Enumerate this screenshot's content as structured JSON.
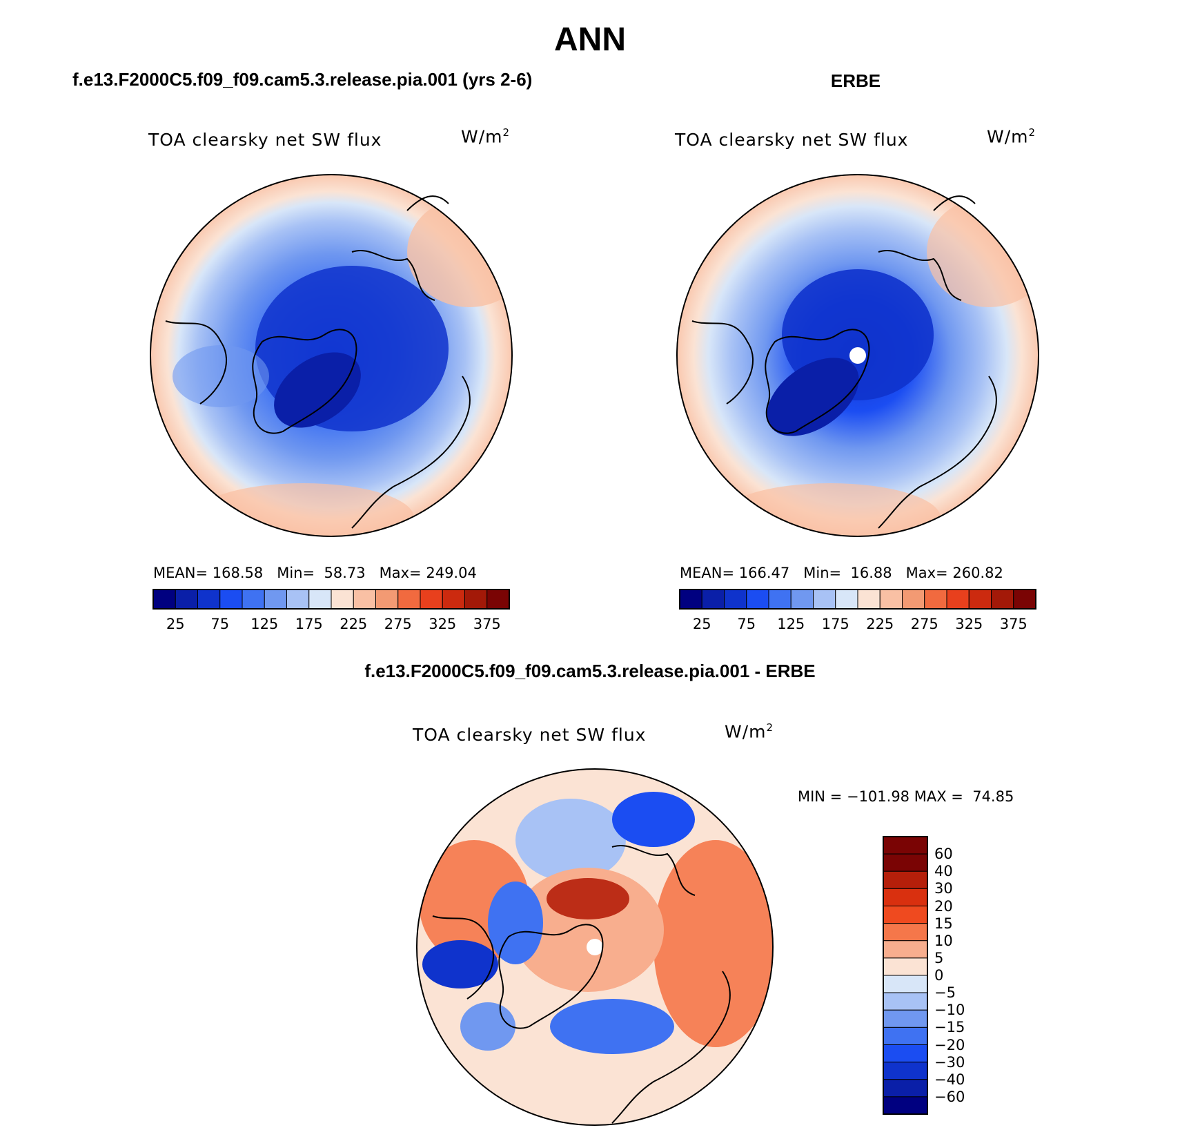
{
  "main_title": "ANN",
  "panels": [
    {
      "title": "f.e13.F2000C5.f09_f09.cam5.3.release.pia.001 (yrs 2-6)",
      "variable": "TOA clearsky net SW flux",
      "units": "W/m",
      "units_sup": "2",
      "mean_label": "MEAN=",
      "mean": "168.58",
      "min_label": "Min=",
      "min": "58.73",
      "max_label": "Max=",
      "max": "249.04",
      "colorbar_labels": [
        "25",
        "75",
        "125",
        "175",
        "225",
        "275",
        "325",
        "375"
      ]
    },
    {
      "title": "ERBE",
      "variable": "TOA clearsky net SW flux",
      "units": "W/m",
      "units_sup": "2",
      "mean_label": "MEAN=",
      "mean": "166.47",
      "min_label": "Min=",
      "min": "16.88",
      "max_label": "Max=",
      "max": "260.82",
      "colorbar_labels": [
        "25",
        "75",
        "125",
        "175",
        "225",
        "275",
        "325",
        "375"
      ]
    },
    {
      "title": "f.e13.F2000C5.f09_f09.cam5.3.release.pia.001 - ERBE",
      "variable": "TOA clearsky net SW flux",
      "units": "W/m",
      "units_sup": "2",
      "minmax_text": "MIN = −101.98 MAX =  74.85",
      "colorbar_labels": [
        "60",
        "40",
        "30",
        "20",
        "15",
        "10",
        "5",
        "0",
        "−5",
        "−10",
        "−15",
        "−20",
        "−30",
        "−40",
        "−60"
      ]
    }
  ],
  "palettes": {
    "absolute": [
      "#000080",
      "#0a1fa8",
      "#0f33cc",
      "#1b4df2",
      "#3f72f2",
      "#7098f0",
      "#a8c2f5",
      "#d8e6f8",
      "#fbe3d4",
      "#f9c0a4",
      "#f39a73",
      "#f16a3f",
      "#e8401d",
      "#cc2a0f",
      "#a31908",
      "#7a0404"
    ],
    "difference": [
      "#7a0404",
      "#b51f0a",
      "#d9300f",
      "#ef4a1f",
      "#f5774a",
      "#f8ae8e",
      "#fbe3d4",
      "#d8e6f8",
      "#a8c2f5",
      "#7098f0",
      "#3f72f2",
      "#1b4df2",
      "#0f33cc",
      "#0a1fa8",
      "#000080"
    ]
  }
}
